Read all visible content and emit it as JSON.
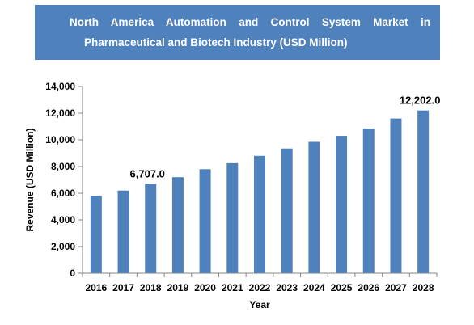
{
  "chart_data": {
    "type": "bar",
    "title_line1": "North America Automation and Control System Market in",
    "title_line2": "Pharmaceutical and Biotech Industry (USD Million)",
    "xlabel": "Year",
    "ylabel": "Revenue (USD Million)",
    "ylim": [
      0,
      14000
    ],
    "yticks": [
      "0",
      "2,000",
      "4,000",
      "6,000",
      "8,000",
      "10,000",
      "12,000",
      "14,000"
    ],
    "categories": [
      "2016",
      "2017",
      "2018",
      "2019",
      "2020",
      "2021",
      "2022",
      "2023",
      "2024",
      "2025",
      "2026",
      "2027",
      "2028"
    ],
    "values": [
      5800,
      6200,
      6707,
      7200,
      7800,
      8250,
      8800,
      9350,
      9850,
      10300,
      10850,
      11600,
      12202
    ],
    "data_labels": [
      {
        "index": 2,
        "text": "6,707.0"
      },
      {
        "index": 12,
        "text": "12,202.0"
      }
    ],
    "bar_color": "#4f81bd",
    "grid": false,
    "legend": "none"
  }
}
